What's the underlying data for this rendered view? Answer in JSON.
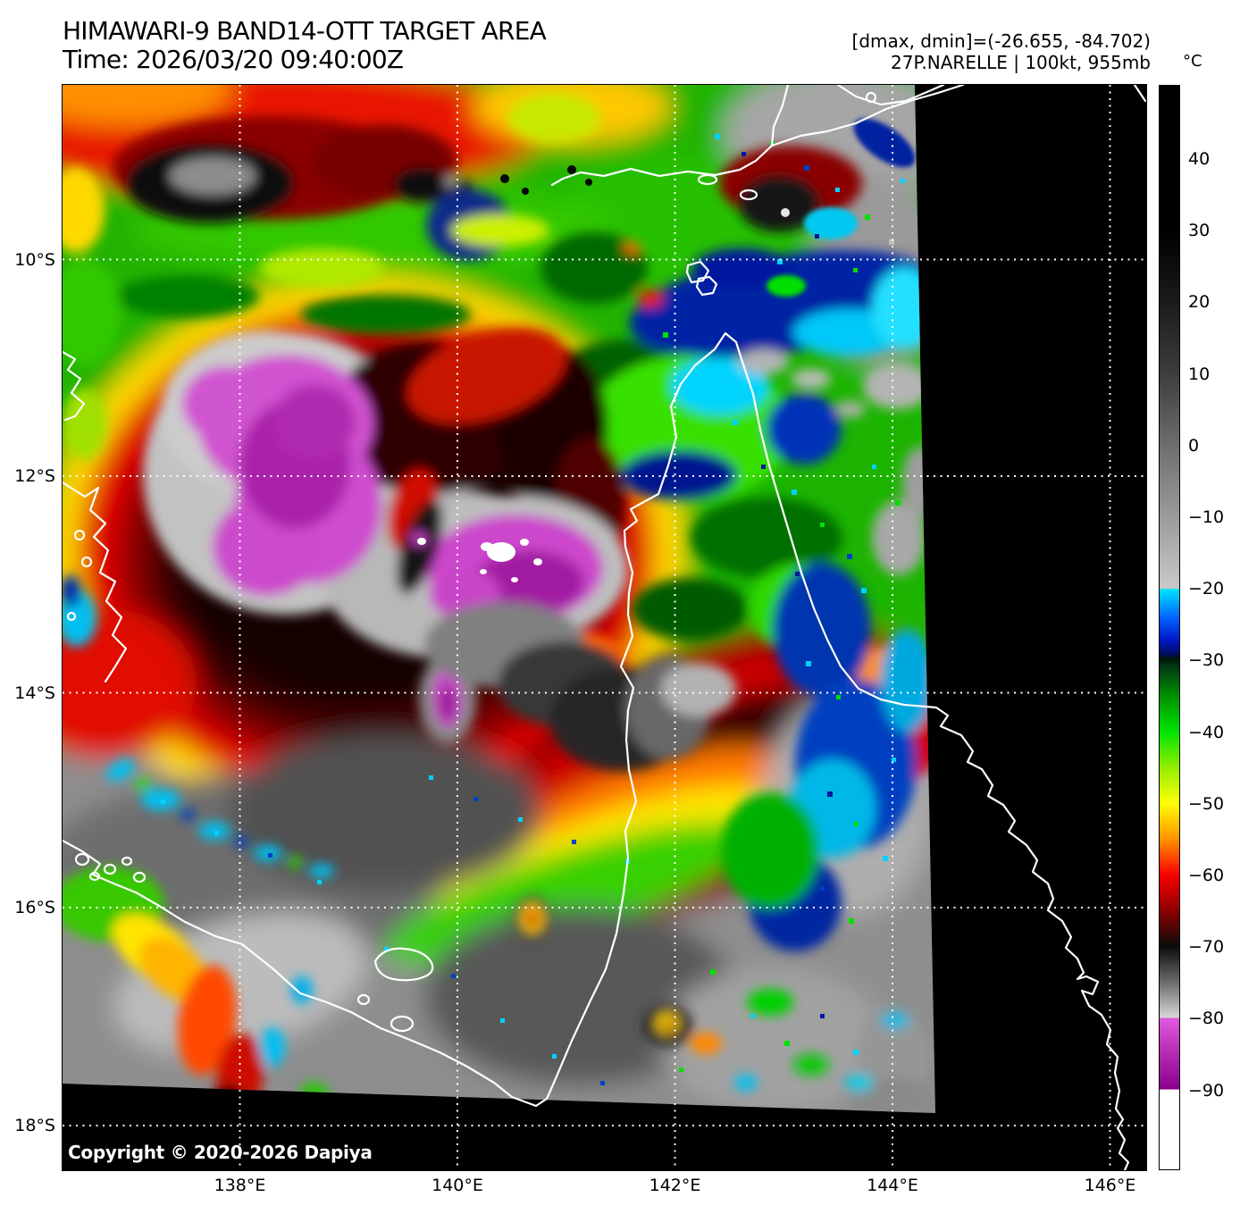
{
  "header": {
    "title": "HIMAWARI-9 BAND14-OTT TARGET AREA",
    "time": "Time: 2026/03/20 09:40:00Z",
    "dminmax": "[dmax, dmin]=(-26.655, -84.702)",
    "storm": "27P.NARELLE | 100kt, 955mb"
  },
  "colorbar": {
    "unit": "°C",
    "ticks": [
      "40",
      "30",
      "20",
      "10",
      "0",
      "−10",
      "−20",
      "−30",
      "−40",
      "−50",
      "−60",
      "−70",
      "−80",
      "−90"
    ],
    "stops": [
      [
        0,
        "#000000"
      ],
      [
        13.4,
        "#000000"
      ],
      [
        20,
        "#1b1b1b"
      ],
      [
        26.6,
        "#3d3d3d"
      ],
      [
        33.2,
        "#6e6e6e"
      ],
      [
        39.8,
        "#9b9b9b"
      ],
      [
        46.4,
        "#c9c9c9"
      ],
      [
        46.45,
        "#00e4ff"
      ],
      [
        49.1,
        "#0064ff"
      ],
      [
        51.1,
        "#0019c8"
      ],
      [
        52.4,
        "#000e64"
      ],
      [
        52.9,
        "#00140a"
      ],
      [
        53.5,
        "#003514"
      ],
      [
        56.3,
        "#009000"
      ],
      [
        59.6,
        "#00e400"
      ],
      [
        63,
        "#96ee00"
      ],
      [
        66.2,
        "#ffff00"
      ],
      [
        69.5,
        "#ff9400"
      ],
      [
        72.8,
        "#fa0000"
      ],
      [
        76.1,
        "#8e0000"
      ],
      [
        79.4,
        "#0a0a0a"
      ],
      [
        82.7,
        "#6b6b6b"
      ],
      [
        86,
        "#d7d7d7"
      ],
      [
        86.05,
        "#de5ade"
      ],
      [
        89.3,
        "#b22cb2"
      ],
      [
        92.6,
        "#8c008c"
      ],
      [
        92.65,
        "#ffffff"
      ],
      [
        100,
        "#ffffff"
      ]
    ]
  },
  "axes": {
    "lat_ticks": [
      "10°S",
      "12°S",
      "14°S",
      "16°S",
      "18°S"
    ],
    "lon_ticks": [
      "138°E",
      "140°E",
      "142°E",
      "144°E",
      "146°E"
    ]
  },
  "footer": {
    "copyright": "Copyright © 2020-2026 Dapiya"
  },
  "palette": {
    "grid_coast": "#ffffff",
    "cold_overshoot": "#8c008c",
    "very_cold": "#de5ade",
    "deep_convection": "#fa0000",
    "background_nodata": "#000000"
  }
}
